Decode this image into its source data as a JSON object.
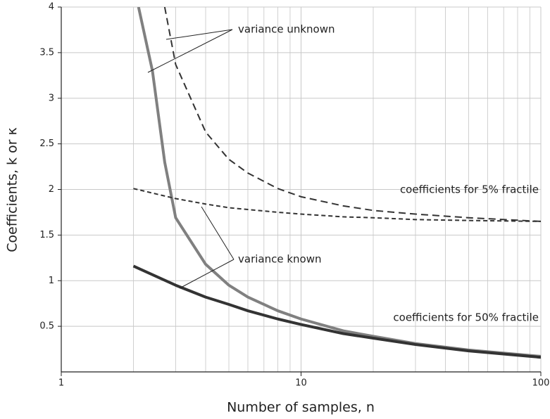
{
  "chart_data": {
    "type": "line",
    "x_label": "Number of samples, n",
    "y_label": "Coefficients, k or κ",
    "xscale": "log",
    "xlim": [
      1,
      100
    ],
    "xticks": [
      1,
      10,
      100
    ],
    "ylim": [
      0,
      4
    ],
    "yticks": [
      0.5,
      1,
      1.5,
      2,
      2.5,
      3,
      3.5,
      4
    ],
    "grid": true,
    "series": [
      {
        "name": "variance unknown, 50% fractile",
        "color": "#808080",
        "dash": "solid",
        "x": [
          2.1,
          2.4,
          2.7,
          3,
          4,
          5,
          6,
          8,
          10,
          15,
          20,
          30,
          50,
          100
        ],
        "values": [
          4.0,
          3.3,
          2.3,
          1.69,
          1.18,
          0.95,
          0.82,
          0.67,
          0.58,
          0.45,
          0.39,
          0.31,
          0.24,
          0.17
        ]
      },
      {
        "name": "variance known, 50% fractile",
        "color": "#333333",
        "dash": "solid",
        "x": [
          2,
          3,
          4,
          5,
          6,
          8,
          10,
          15,
          20,
          30,
          50,
          100
        ],
        "values": [
          1.16,
          0.95,
          0.82,
          0.74,
          0.67,
          0.58,
          0.52,
          0.42,
          0.37,
          0.3,
          0.23,
          0.16
        ]
      },
      {
        "name": "variance unknown, 5% fractile",
        "color": "#333333",
        "dash": "long",
        "x": [
          2.7,
          3,
          4,
          5,
          6,
          8,
          10,
          15,
          20,
          30,
          50,
          100
        ],
        "values": [
          4.0,
          3.37,
          2.63,
          2.33,
          2.18,
          2.01,
          1.92,
          1.82,
          1.77,
          1.73,
          1.69,
          1.65
        ]
      },
      {
        "name": "variance known, 5% fractile",
        "color": "#333333",
        "dash": "short",
        "x": [
          2,
          3,
          4,
          5,
          6,
          8,
          10,
          15,
          20,
          30,
          50,
          100
        ],
        "values": [
          2.01,
          1.9,
          1.84,
          1.8,
          1.78,
          1.75,
          1.73,
          1.7,
          1.69,
          1.67,
          1.66,
          1.65
        ]
      }
    ],
    "annotations": [
      "variance unknown",
      "variance known",
      "coefficients for 5% fractile",
      "coefficients for 50% fractile"
    ]
  }
}
